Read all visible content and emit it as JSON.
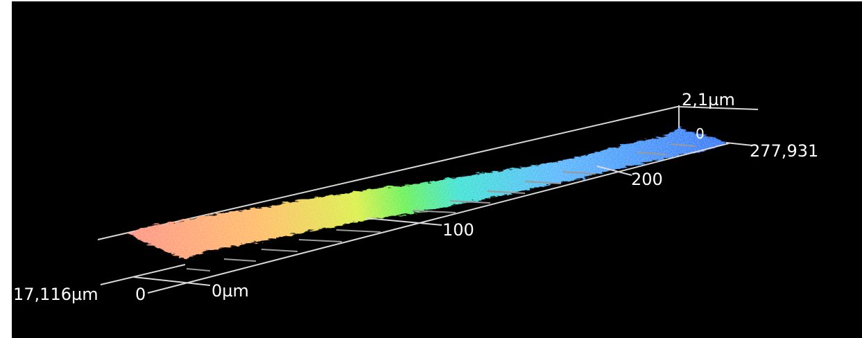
{
  "view": {
    "type": "3d-surface-profile",
    "colors": {
      "background": "#000000",
      "page_border": "#ffffff",
      "axis_lines": "#d8d8d8",
      "labels": "#ffffff",
      "colormap": [
        "#2a6df5",
        "#4fb1ff",
        "#31e0d0",
        "#5ef04a",
        "#d8ee3a",
        "#ffb85a",
        "#ff8a7a"
      ]
    }
  },
  "axes": {
    "z_max_label": "2,1µm",
    "z_zero_label": "0",
    "x_end_label": "277,931",
    "x_tick_200": "200",
    "x_tick_100": "100",
    "origin_x_label": "0µm",
    "origin_y_label": "0",
    "y_end_label": "17,116µm"
  }
}
